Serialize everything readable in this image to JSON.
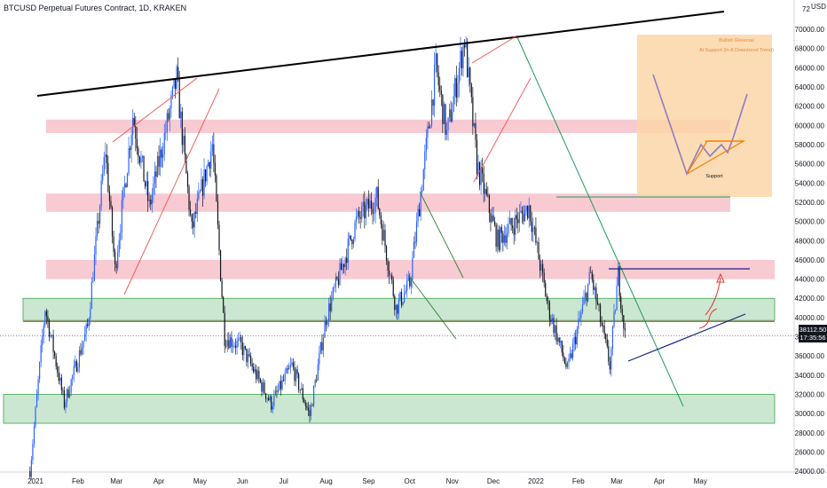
{
  "title": "BTCUSD Perpetual Futures Contract, 1D, KRAKEN",
  "price_axis": {
    "ticks": [
      "70000.00",
      "68000.00",
      "66000.00",
      "64000.00",
      "62000.00",
      "60000.00",
      "58000.00",
      "56000.00",
      "54000.00",
      "52000.00",
      "50000.00",
      "48000.00",
      "46000.00",
      "44000.00",
      "42000.00",
      "40000.00",
      "38000.00",
      "36000.00",
      "34000.00",
      "32000.00",
      "30000.00",
      "28000.00",
      "26000.00",
      "24000.00"
    ],
    "top_label": "72",
    "currency": "USD"
  },
  "time_axis": {
    "ticks": [
      "2021",
      "Feb",
      "Mar",
      "Apr",
      "May",
      "Jun",
      "Jul",
      "Aug",
      "Sep",
      "Oct",
      "Nov",
      "Dec",
      "2022",
      "Feb",
      "Mar",
      "Apr",
      "May"
    ]
  },
  "last_price": {
    "value": "38112.50",
    "countdown": "17:35:56"
  },
  "annotation_box": {
    "line1": "Bullish Reversal",
    "line2": "At Support (In A Downtrend Trend)",
    "support_label": "Support"
  },
  "colors": {
    "up": "#2962ff",
    "down": "#131722",
    "resistance_zone": "#f6b8c3",
    "support_zone": "#b9dfc2",
    "box_fill": "#fbd6a8"
  },
  "chart_data": {
    "type": "candlestick",
    "symbol": "BTCUSD Perpetual Futures Contract",
    "interval": "1D",
    "exchange": "KRAKEN",
    "ylim": [
      23000,
      73000
    ],
    "x_labels": [
      "2021",
      "Feb",
      "Mar",
      "Apr",
      "May",
      "Jun",
      "Jul",
      "Aug",
      "Sep",
      "Oct",
      "Nov",
      "Dec",
      "2022",
      "Feb",
      "Mar",
      "Apr",
      "May"
    ],
    "last_price": 38112.5,
    "price_path": [
      [
        "2020-12-28",
        24000
      ],
      [
        "2021-01-08",
        41000
      ],
      [
        "2021-01-22",
        31000
      ],
      [
        "2021-02-08",
        39000
      ],
      [
        "2021-02-21",
        57500
      ],
      [
        "2021-02-28",
        45000
      ],
      [
        "2021-03-13",
        61000
      ],
      [
        "2021-03-25",
        51500
      ],
      [
        "2021-04-14",
        64800
      ],
      [
        "2021-04-25",
        49000
      ],
      [
        "2021-05-10",
        58000
      ],
      [
        "2021-05-19",
        38000
      ],
      [
        "2021-05-31",
        37000
      ],
      [
        "2021-06-22",
        31000
      ],
      [
        "2021-07-07",
        35000
      ],
      [
        "2021-07-20",
        29800
      ],
      [
        "2021-08-01",
        40000
      ],
      [
        "2021-08-23",
        50000
      ],
      [
        "2021-09-07",
        52500
      ],
      [
        "2021-09-21",
        41000
      ],
      [
        "2021-10-01",
        43500
      ],
      [
        "2021-10-20",
        66000
      ],
      [
        "2021-10-28",
        59000
      ],
      [
        "2021-11-10",
        69000
      ],
      [
        "2021-11-19",
        56000
      ],
      [
        "2021-12-04",
        48000
      ],
      [
        "2021-12-27",
        51500
      ],
      [
        "2022-01-10",
        41000
      ],
      [
        "2022-01-24",
        34500
      ],
      [
        "2022-02-10",
        44500
      ],
      [
        "2022-02-24",
        35000
      ],
      [
        "2022-03-02",
        44500
      ],
      [
        "2022-03-07",
        38112.5
      ]
    ],
    "zones": [
      {
        "type": "resistance",
        "from": 59200,
        "to": 60600
      },
      {
        "type": "resistance",
        "from": 51000,
        "to": 52900
      },
      {
        "type": "resistance",
        "from": 44000,
        "to": 46000
      },
      {
        "type": "support",
        "from": 39700,
        "to": 42000
      },
      {
        "type": "support",
        "from": 29000,
        "to": 32000
      }
    ]
  }
}
